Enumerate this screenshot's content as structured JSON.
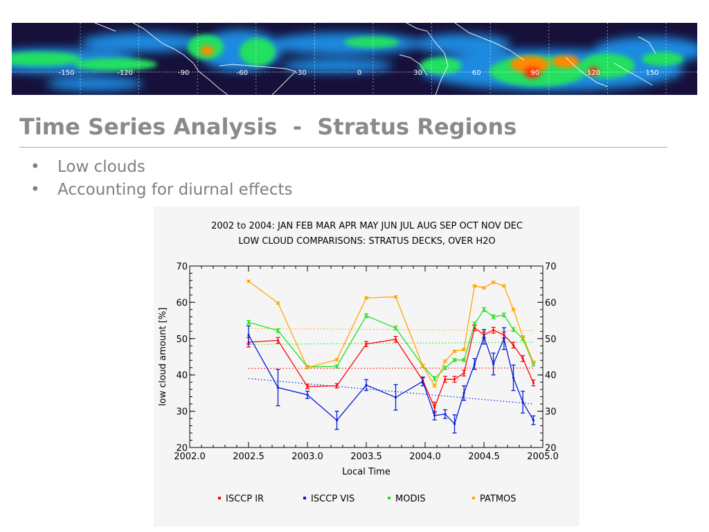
{
  "slide": {
    "title": "Time Series Analysis  -  Stratus Regions",
    "bullets": [
      "Low clouds",
      "Accounting for diurnal effects"
    ],
    "title_color": "#8a8a8a",
    "bullet_color": "#7f7f7f"
  },
  "banner": {
    "longitude_labels": [
      "-150",
      "-120",
      "-90",
      "-60",
      "-30",
      "0",
      "30",
      "60",
      "90",
      "120",
      "150"
    ],
    "colors": {
      "background": "#16103a",
      "low": "#1f8ae0",
      "mid": "#22e060",
      "high": "#ff8800",
      "peak": "#ff2a00"
    }
  },
  "chart_data": {
    "type": "line",
    "title": "2002 to 2004: JAN FEB MAR APR MAY JUN JUL AUG SEP OCT NOV DEC",
    "subtitle": "LOW CLOUD COMPARISONS: STRATUS DECKS, OVER H2O",
    "xlabel": "Local Time",
    "ylabel": "low cloud amount [%]",
    "xlim": [
      2002.0,
      2005.0
    ],
    "ylim": [
      20,
      70
    ],
    "x_ticks": [
      "2002.0",
      "2002.5",
      "2003.0",
      "2003.5",
      "2004.0",
      "2004.5",
      "2005.0"
    ],
    "y_ticks": [
      "20",
      "30",
      "40",
      "50",
      "60",
      "70"
    ],
    "legend_position": "bottom",
    "series": [
      {
        "name": "ISCCP IR",
        "color": "#ff0000",
        "x": [
          2002.5,
          2002.75,
          2003.0,
          2003.25,
          2003.5,
          2003.75,
          2003.98,
          2004.08,
          2004.17,
          2004.25,
          2004.33,
          2004.42,
          2004.5,
          2004.58,
          2004.67,
          2004.75,
          2004.83,
          2004.92
        ],
        "y": [
          49,
          49.5,
          36.8,
          37,
          48.5,
          49.8,
          38.5,
          31,
          38.8,
          38.8,
          40.5,
          53,
          51,
          52.3,
          51,
          48.2,
          44.5,
          37.8
        ],
        "err": [
          1.3,
          0.8,
          0.6,
          0.6,
          0.7,
          0.8,
          0.7,
          1.5,
          0.8,
          0.8,
          0.8,
          0.8,
          0.8,
          0.8,
          0.8,
          0.8,
          0.8,
          0.8
        ],
        "trend": [
          41.8,
          41.9
        ]
      },
      {
        "name": "ISCCP VIS",
        "color": "#0018d8",
        "x": [
          2002.5,
          2002.75,
          2003.0,
          2003.25,
          2003.5,
          2003.75,
          2003.98,
          2004.08,
          2004.17,
          2004.25,
          2004.33,
          2004.42,
          2004.5,
          2004.58,
          2004.67,
          2004.75,
          2004.83,
          2004.92
        ],
        "y": [
          51,
          36.5,
          34.5,
          27.5,
          37.2,
          33.8,
          38.2,
          28.8,
          29.2,
          26.5,
          35,
          43,
          50.5,
          43,
          50,
          39.2,
          32.5,
          27.5
        ],
        "err": [
          2.5,
          5.0,
          1.0,
          2.5,
          1.5,
          3.5,
          1.2,
          1.2,
          1.2,
          2.5,
          2.0,
          1.5,
          2.0,
          3.0,
          3.0,
          3.5,
          3.0,
          1.2
        ],
        "trend": [
          39,
          32
        ]
      },
      {
        "name": "MODIS",
        "color": "#20e020",
        "x": [
          2002.5,
          2002.75,
          2003.0,
          2003.25,
          2003.5,
          2003.75,
          2003.98,
          2004.08,
          2004.17,
          2004.25,
          2004.33,
          2004.42,
          2004.5,
          2004.58,
          2004.67,
          2004.75,
          2004.83,
          2004.92
        ],
        "y": [
          54.5,
          52.2,
          42.2,
          42.3,
          56.3,
          52.9,
          42.5,
          39,
          41.9,
          44.1,
          44.1,
          54,
          58,
          56,
          56.5,
          52.5,
          50,
          43
        ],
        "err": [
          0.5,
          0.5,
          0.4,
          0.4,
          0.5,
          0.5,
          0.4,
          0.5,
          0.4,
          0.4,
          0.4,
          0.5,
          0.5,
          0.5,
          0.5,
          0.5,
          0.5,
          0.5
        ],
        "trend": [
          48.4,
          49
        ]
      },
      {
        "name": "PATMOS",
        "color": "#ffa500",
        "x": [
          2002.5,
          2002.75,
          2003.0,
          2003.25,
          2003.5,
          2003.75,
          2003.98,
          2004.08,
          2004.17,
          2004.25,
          2004.33,
          2004.42,
          2004.5,
          2004.58,
          2004.67,
          2004.75,
          2004.83,
          2004.92
        ],
        "y": [
          65.8,
          59.8,
          42,
          44.2,
          61.2,
          61.5,
          42.5,
          37,
          43.8,
          46.5,
          47,
          64.5,
          64,
          65.5,
          64.5,
          58,
          50.5,
          43.5
        ],
        "err": [
          0.3,
          0.3,
          0.3,
          0.3,
          0.3,
          0.3,
          0.3,
          0.3,
          0.3,
          0.3,
          0.3,
          0.3,
          0.3,
          0.3,
          0.3,
          0.3,
          0.3,
          0.3
        ],
        "trend": [
          52.8,
          52.2
        ]
      }
    ]
  }
}
